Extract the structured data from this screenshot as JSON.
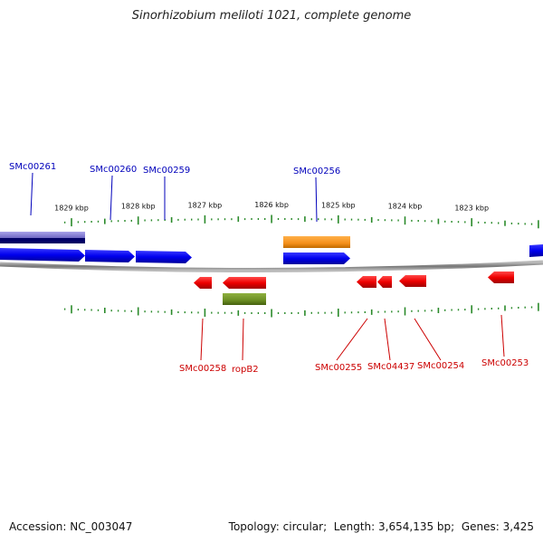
{
  "title": "Sinorhizobium meliloti 1021, complete genome",
  "footer": {
    "accession_label": "Accession:",
    "accession_value": "NC_003047",
    "topology_label": "Topology:",
    "topology_value": "circular",
    "length_label": "Length:",
    "length_value": "3,654,135 bp",
    "genes_label": "Genes:",
    "genes_value": "3,425"
  },
  "scale_ticks": [
    {
      "label": "1829 kbp",
      "kbp": 1829
    },
    {
      "label": "1828 kbp",
      "kbp": 1828
    },
    {
      "label": "1827 kbp",
      "kbp": 1827
    },
    {
      "label": "1826 kbp",
      "kbp": 1826
    },
    {
      "label": "1825 kbp",
      "kbp": 1825
    },
    {
      "label": "1824 kbp",
      "kbp": 1824
    },
    {
      "label": "1823 kbp",
      "kbp": 1823
    }
  ],
  "colors": {
    "forward_gene": "#0000ee",
    "reverse_gene": "#ee0000",
    "forward_label": "#0000bb",
    "reverse_label": "#cc0000",
    "tick": "#2a8a2a",
    "backbone": "#888888",
    "orange_feature": "#f5901a",
    "olive_feature": "#6b8e23",
    "lavender_feature": "#7f78d0",
    "navy_feature": "#000066"
  },
  "forward_labels": [
    {
      "name": "SMc00261"
    },
    {
      "name": "SMc00260"
    },
    {
      "name": "SMc00259"
    },
    {
      "name": "SMc00256"
    }
  ],
  "reverse_labels": [
    {
      "name": "SMc00258"
    },
    {
      "name": "ropB2"
    },
    {
      "name": "SMc00255"
    },
    {
      "name": "SMc04437"
    },
    {
      "name": "SMc00254"
    },
    {
      "name": "SMc00253"
    }
  ]
}
